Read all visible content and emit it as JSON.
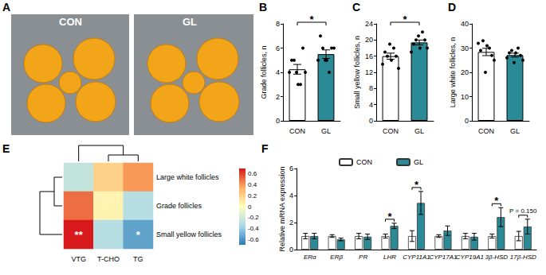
{
  "chart_data": [
    {
      "type": "image",
      "title": "A",
      "labels": [
        "CON",
        "GL"
      ]
    },
    {
      "type": "bar",
      "title": "B",
      "categories": [
        "CON",
        "GL"
      ],
      "values": [
        4.25,
        5.5
      ],
      "errors": [
        0.4,
        0.35
      ],
      "points": [
        [
          4,
          5,
          3,
          4,
          5,
          4,
          6,
          3
        ],
        [
          5,
          6,
          4,
          6,
          7,
          5,
          6,
          5
        ]
      ],
      "colors": [
        "#ffffff",
        "#2a8a96"
      ],
      "ylabel": "Grade follicles, n",
      "ylim": [
        0,
        8
      ],
      "yticks": [
        0,
        2,
        4,
        6,
        8
      ],
      "grid": false,
      "annotations": [
        {
          "between": [
            "CON",
            "GL"
          ],
          "text": "*"
        }
      ]
    },
    {
      "type": "bar",
      "title": "C",
      "categories": [
        "CON",
        "GL"
      ],
      "values": [
        16,
        19.4
      ],
      "errors": [
        0.75,
        0.6
      ],
      "points": [
        [
          14,
          16,
          18,
          13,
          17,
          19,
          16,
          15
        ],
        [
          17,
          20,
          22,
          18,
          19,
          21,
          20,
          18
        ]
      ],
      "colors": [
        "#ffffff",
        "#2a8a96"
      ],
      "ylabel": "Small yellow follicles, n",
      "ylim": [
        0,
        24
      ],
      "yticks": [
        0,
        4,
        8,
        12,
        16,
        20,
        24
      ],
      "grid": false,
      "annotations": [
        {
          "between": [
            "CON",
            "GL"
          ],
          "text": "*"
        }
      ]
    },
    {
      "type": "bar",
      "title": "D",
      "categories": [
        "CON",
        "GL"
      ],
      "values": [
        28.4,
        27.1
      ],
      "errors": [
        1.5,
        0.8
      ],
      "points": [
        [
          32,
          33,
          30,
          25,
          29,
          20,
          27,
          31
        ],
        [
          26,
          29,
          30,
          25,
          28,
          24,
          27,
          28
        ]
      ],
      "colors": [
        "#ffffff",
        "#2a8a96"
      ],
      "ylabel": "Large white follicles, n",
      "ylim": [
        0,
        40
      ],
      "yticks": [
        0,
        10,
        20,
        30,
        40
      ],
      "grid": false
    },
    {
      "type": "heatmap",
      "title": "E",
      "x": [
        "VTG",
        "T-CHO",
        "TG"
      ],
      "y": [
        "Large white follicles",
        "Grade follicles",
        "Small yellow follicles"
      ],
      "cells": [
        [
          -0.25,
          0.2,
          0.4
        ],
        [
          0.5,
          0.05,
          -0.3
        ],
        [
          0.7,
          -0.3,
          -0.55
        ]
      ],
      "cell_labels": [
        [
          null,
          null,
          null
        ],
        [
          null,
          null,
          null
        ],
        [
          "**",
          null,
          "*"
        ]
      ],
      "colorbar": {
        "range": [
          -0.7,
          0.7
        ],
        "ticks": [
          -0.6,
          -0.4,
          -0.2,
          0,
          0.2,
          0.4,
          0.6
        ],
        "colors": [
          "#2c7bb6",
          "#abd9e9",
          "#ffffbf",
          "#fdae61",
          "#d7191c"
        ]
      }
    },
    {
      "type": "bar",
      "title": "F",
      "categories": [
        "ERα",
        "ERβ",
        "PR",
        "LHR",
        "CYP11A1",
        "CYP17A1",
        "CYP19A1",
        "3β-HSD",
        "17β-HSD"
      ],
      "series": [
        {
          "name": "CON",
          "color": "#ffffff",
          "values": [
            1,
            1,
            1,
            1,
            1,
            1,
            1,
            1,
            1
          ],
          "errors": [
            0.2,
            0.1,
            0.2,
            0.15,
            0.4,
            0.1,
            0.2,
            0.15,
            0.35
          ]
        },
        {
          "name": "GL",
          "color": "#2a8a96",
          "values": [
            1,
            0.75,
            0.95,
            1.75,
            3.45,
            1.4,
            0.95,
            2.4,
            1.7
          ],
          "errors": [
            0.2,
            0.1,
            0.2,
            0.2,
            0.85,
            0.35,
            0.25,
            0.7,
            0.55
          ]
        }
      ],
      "ylabel": "Relative mRNA expression",
      "ylim": [
        0,
        6
      ],
      "yticks": [
        0,
        2,
        4,
        6
      ],
      "grid": false,
      "legend": "top left",
      "annotations": [
        {
          "category": "LHR",
          "text": "*"
        },
        {
          "category": "CYP11A1",
          "text": "*"
        },
        {
          "category": "3β-HSD",
          "text": "*"
        },
        {
          "category": "17β-HSD",
          "text": "P = 0.150"
        }
      ]
    }
  ]
}
